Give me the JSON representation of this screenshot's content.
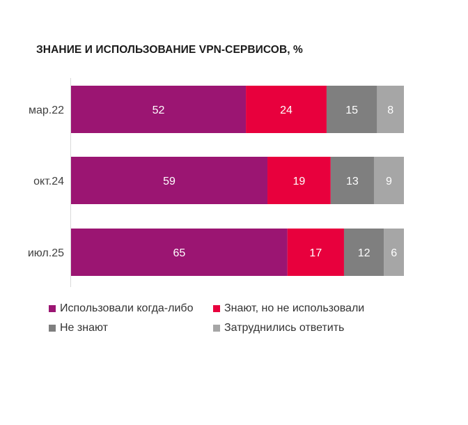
{
  "title": "ЗНАНИЕ И ИСПОЛЬЗОВАНИЕ VPN-СЕРВИСОВ, %",
  "chart_data": {
    "type": "bar",
    "orientation": "horizontal",
    "stacked": true,
    "title": "ЗНАНИЕ И ИСПОЛЬЗОВАНИЕ VPN-СЕРВИСОВ, %",
    "categories": [
      "мар.22",
      "окт.24",
      "июл.25"
    ],
    "series": [
      {
        "name": "Использовали когда-либо",
        "color": "#9b1572",
        "values": [
          52,
          59,
          65
        ]
      },
      {
        "name": "Знают, но не использовали",
        "color": "#e8003d",
        "values": [
          24,
          19,
          17
        ]
      },
      {
        "name": "Не знают",
        "color": "#7f7f7f",
        "values": [
          15,
          13,
          12
        ]
      },
      {
        "name": "Затруднились ответить",
        "color": "#a6a6a6",
        "values": [
          8,
          9,
          6
        ]
      }
    ],
    "xlim": [
      0,
      100
    ],
    "grid": false,
    "legend_position": "bottom",
    "data_labels": true
  }
}
